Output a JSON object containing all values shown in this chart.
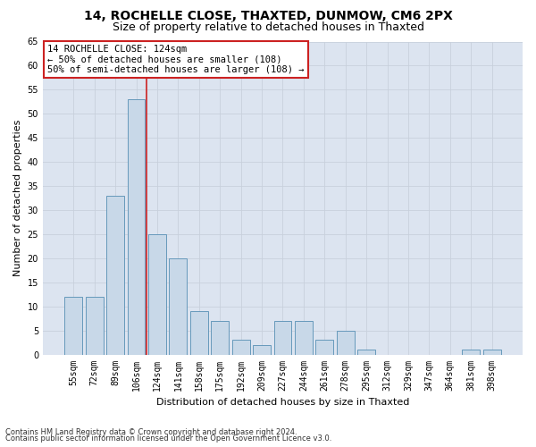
{
  "title1": "14, ROCHELLE CLOSE, THAXTED, DUNMOW, CM6 2PX",
  "title2": "Size of property relative to detached houses in Thaxted",
  "xlabel": "Distribution of detached houses by size in Thaxted",
  "ylabel": "Number of detached properties",
  "categories": [
    "55sqm",
    "72sqm",
    "89sqm",
    "106sqm",
    "124sqm",
    "141sqm",
    "158sqm",
    "175sqm",
    "192sqm",
    "209sqm",
    "227sqm",
    "244sqm",
    "261sqm",
    "278sqm",
    "295sqm",
    "312sqm",
    "329sqm",
    "347sqm",
    "364sqm",
    "381sqm",
    "398sqm"
  ],
  "values": [
    12,
    12,
    33,
    53,
    25,
    20,
    9,
    7,
    3,
    2,
    7,
    7,
    3,
    5,
    1,
    0,
    0,
    0,
    0,
    1,
    1
  ],
  "vline_position": 3.5,
  "bar_color": "#c8d8e8",
  "bar_edge_color": "#6699bb",
  "vline_color": "#cc2222",
  "ylim": [
    0,
    65
  ],
  "yticks": [
    0,
    5,
    10,
    15,
    20,
    25,
    30,
    35,
    40,
    45,
    50,
    55,
    60,
    65
  ],
  "annotation_text": "14 ROCHELLE CLOSE: 124sqm\n← 50% of detached houses are smaller (108)\n50% of semi-detached houses are larger (108) →",
  "footer1": "Contains HM Land Registry data © Crown copyright and database right 2024.",
  "footer2": "Contains public sector information licensed under the Open Government Licence v3.0.",
  "grid_color": "#c8d0dc",
  "bg_color": "#dce4f0",
  "title1_fontsize": 10,
  "title2_fontsize": 9,
  "xlabel_fontsize": 8,
  "ylabel_fontsize": 8,
  "tick_fontsize": 7,
  "footer_fontsize": 6,
  "annot_fontsize": 7.5
}
